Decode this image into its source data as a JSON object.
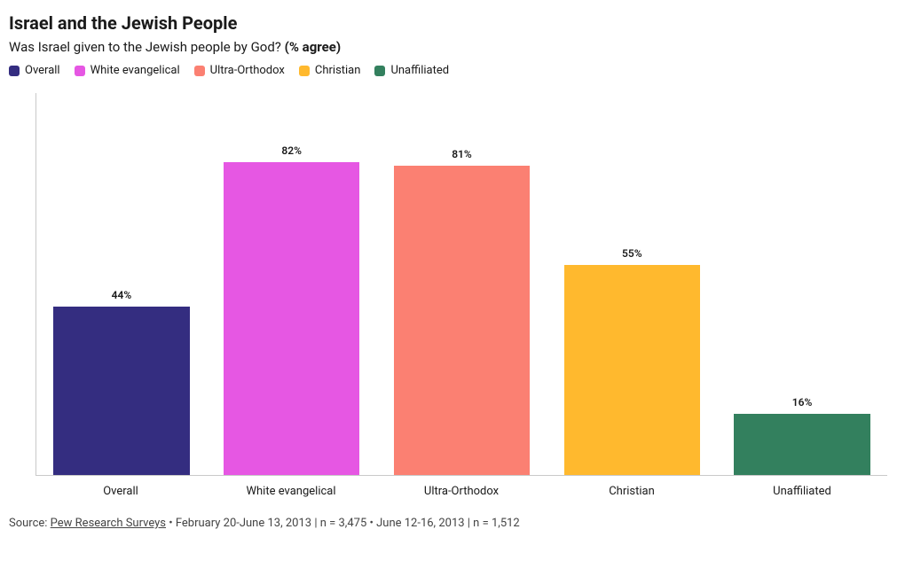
{
  "title": "Israel and the Jewish People",
  "subtitle_plain": "Was Israel given to the Jewish people by God? ",
  "subtitle_bold": "(% agree)",
  "chart": {
    "type": "bar",
    "ymax": 100,
    "categories": [
      "Overall",
      "White evangelical",
      "Ultra-Orthodox",
      "Christian",
      "Unaffiliated"
    ],
    "values": [
      44,
      82,
      81,
      55,
      16
    ],
    "value_labels": [
      "44%",
      "82%",
      "81%",
      "55%",
      "16%"
    ],
    "colors": [
      "#342d80",
      "#e657e3",
      "#fb8072",
      "#ffb92e",
      "#33805e"
    ],
    "axis_color": "#c9c9c9",
    "label_fontsize": 12,
    "xlabel_fontsize": 13,
    "bar_width_pct": 80
  },
  "legend": [
    {
      "label": "Overall",
      "color": "#342d80"
    },
    {
      "label": "White evangelical",
      "color": "#e657e3"
    },
    {
      "label": "Ultra-Orthodox",
      "color": "#fb8072"
    },
    {
      "label": "Christian",
      "color": "#ffb92e"
    },
    {
      "label": "Unaffiliated",
      "color": "#33805e"
    }
  ],
  "source": {
    "prefix": "Source: ",
    "link_text": "Pew Research Surveys",
    "suffix": " • February 20-June 13, 2013 | n = 3,475 • June 12-16, 2013 | n = 1,512"
  }
}
